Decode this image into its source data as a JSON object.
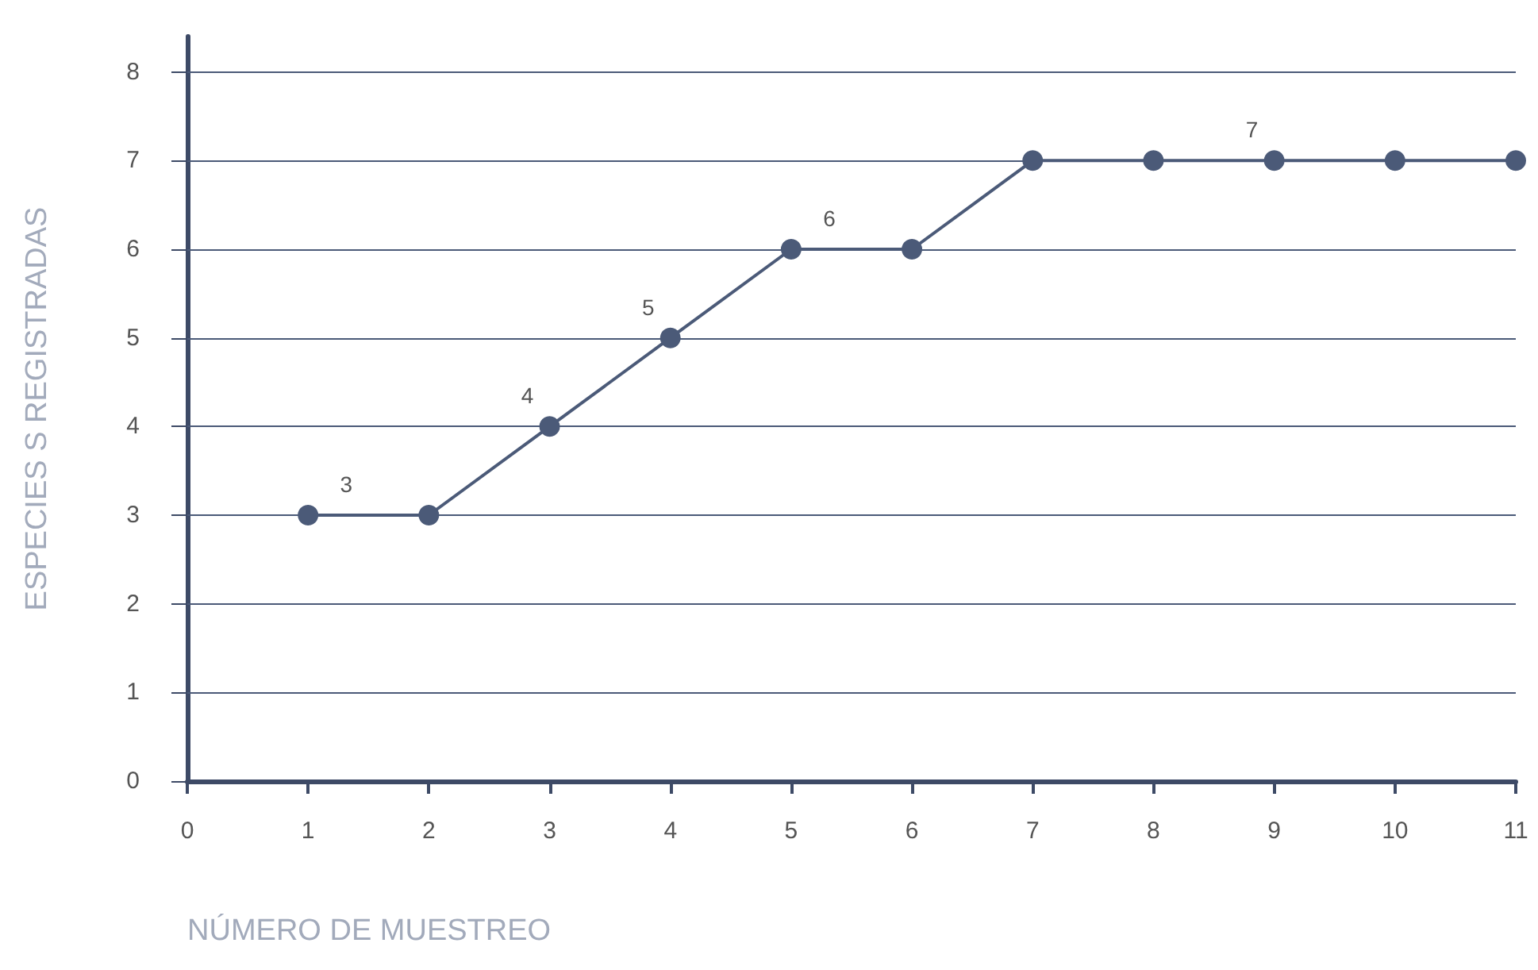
{
  "chart_data": {
    "type": "line",
    "xlabel": "NÚMERO DE MUESTREO",
    "ylabel": "ESPECIES S REGISTRADAS",
    "x": [
      1,
      2,
      3,
      4,
      5,
      6,
      7,
      8,
      9,
      10,
      11
    ],
    "series": [
      {
        "color": "#4b5a78",
        "values": [
          3,
          3,
          4,
          5,
          6,
          6,
          7,
          7,
          7,
          7,
          7
        ]
      }
    ],
    "xlim": [
      0,
      11
    ],
    "xticks": [
      0,
      1,
      2,
      3,
      4,
      5,
      6,
      7,
      8,
      9,
      10,
      11
    ],
    "ylim": [
      0,
      8.4
    ],
    "yticks": [
      0,
      1,
      2,
      3,
      4,
      5,
      6,
      7,
      8
    ],
    "grid": "y",
    "marker": "circle",
    "line_style": "solid",
    "annotations": [
      {
        "text": "3",
        "x": 1.5,
        "y": 3
      },
      {
        "text": "4",
        "x": 3,
        "y": 4
      },
      {
        "text": "5",
        "x": 4,
        "y": 5
      },
      {
        "text": "6",
        "x": 5.5,
        "y": 6
      },
      {
        "text": "7",
        "x": 9,
        "y": 7
      }
    ]
  }
}
